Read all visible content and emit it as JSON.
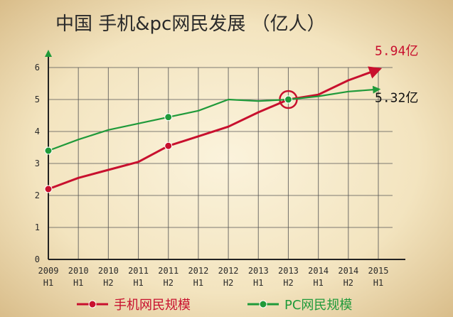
{
  "chart_data": {
    "type": "line",
    "title": "中国 手机&pc网民发展 （亿人）",
    "categories": [
      "2009 H1",
      "2010 H1",
      "2010 H2",
      "2011 H1",
      "2011 H2",
      "2012 H1",
      "2012 H2",
      "2013 H1",
      "2013 H2",
      "2014 H1",
      "2014 H2",
      "2015 H1"
    ],
    "x_top_labels": [
      "2009",
      "2010",
      "2010",
      "2011",
      "2011",
      "2012",
      "2012",
      "2013",
      "2013",
      "2014",
      "2014",
      "2015"
    ],
    "x_bottom_labels": [
      "H1",
      "H1",
      "H2",
      "H1",
      "H2",
      "H1",
      "H2",
      "H1",
      "H2",
      "H1",
      "H2",
      "H1"
    ],
    "ylim": [
      0,
      6
    ],
    "yticks": [
      "0",
      "1",
      "2",
      "3",
      "4",
      "5",
      "6"
    ],
    "grid": true,
    "series": [
      {
        "name": "手机网民规模",
        "color": "#c8102e",
        "values": [
          2.2,
          2.55,
          2.8,
          3.05,
          3.55,
          3.85,
          4.15,
          4.6,
          5.0,
          5.15,
          5.6,
          5.94
        ],
        "markers": [
          0,
          4,
          8
        ],
        "highlight": 8,
        "arrow": true
      },
      {
        "name": "PC网民规模",
        "color": "#1f9a3a",
        "values": [
          3.4,
          3.75,
          4.05,
          4.25,
          4.45,
          4.65,
          5.0,
          4.95,
          5.0,
          5.1,
          5.25,
          5.32
        ],
        "markers": [
          0,
          4,
          8
        ],
        "arrow": true
      }
    ],
    "annotations": [
      {
        "text": "5.94亿",
        "series": 0,
        "color": "#c8102e"
      },
      {
        "text": "5.32亿",
        "series": 1,
        "color": "#111111"
      }
    ],
    "legend": {
      "placement": "bottom"
    }
  }
}
